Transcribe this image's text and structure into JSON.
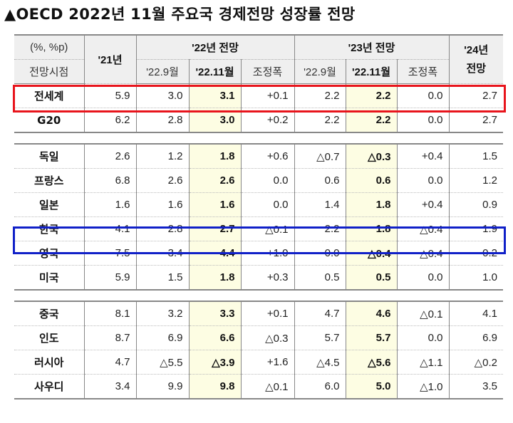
{
  "title": "▲OECD 2022년 11월 주요국 경제전망 성장률 전망",
  "header": {
    "unit": "(%, %p)",
    "forecast_point": "전망시점",
    "y21": "'21년",
    "g22": "'22년 전망",
    "g23": "'23년 전망",
    "y24": "'24년 전망",
    "sub": [
      "'22.9월",
      "'22.11월",
      "조정폭",
      "'22.9월",
      "'22.11월",
      "조정폭"
    ]
  },
  "groups": [
    [
      {
        "name": "전세계",
        "v": [
          "5.9",
          "3.0",
          "3.1",
          "+0.1",
          "2.2",
          "2.2",
          "0.0",
          "2.7"
        ]
      },
      {
        "name": "G20",
        "v": [
          "6.2",
          "2.8",
          "3.0",
          "+0.2",
          "2.2",
          "2.2",
          "0.0",
          "2.7"
        ]
      }
    ],
    [
      {
        "name": "독일",
        "v": [
          "2.6",
          "1.2",
          "1.8",
          "+0.6",
          "△0.7",
          "△0.3",
          "+0.4",
          "1.5"
        ]
      },
      {
        "name": "프랑스",
        "v": [
          "6.8",
          "2.6",
          "2.6",
          "0.0",
          "0.6",
          "0.6",
          "0.0",
          "1.2"
        ]
      },
      {
        "name": "일본",
        "v": [
          "1.6",
          "1.6",
          "1.6",
          "0.0",
          "1.4",
          "1.8",
          "+0.4",
          "0.9"
        ]
      },
      {
        "name": "한국",
        "v": [
          "4.1",
          "2.8",
          "2.7",
          "△0.1",
          "2.2",
          "1.8",
          "△0.4",
          "1.9"
        ]
      },
      {
        "name": "영국",
        "v": [
          "7.5",
          "3.4",
          "4.4",
          "+1.0",
          "0.0",
          "△0.4",
          "△0.4",
          "0.2"
        ]
      },
      {
        "name": "미국",
        "v": [
          "5.9",
          "1.5",
          "1.8",
          "+0.3",
          "0.5",
          "0.5",
          "0.0",
          "1.0"
        ]
      }
    ],
    [
      {
        "name": "중국",
        "v": [
          "8.1",
          "3.2",
          "3.3",
          "+0.1",
          "4.7",
          "4.6",
          "△0.1",
          "4.1"
        ]
      },
      {
        "name": "인도",
        "v": [
          "8.7",
          "6.9",
          "6.6",
          "△0.3",
          "5.7",
          "5.7",
          "0.0",
          "6.9"
        ]
      },
      {
        "name": "러시아",
        "v": [
          "4.7",
          "△5.5",
          "△3.9",
          "+1.6",
          "△4.5",
          "△5.6",
          "△1.1",
          "△0.2"
        ]
      },
      {
        "name": "사우디",
        "v": [
          "3.4",
          "9.9",
          "9.8",
          "△0.1",
          "6.0",
          "5.0",
          "△1.0",
          "3.5"
        ]
      }
    ]
  ],
  "colors": {
    "highlight_world": "#e8141c",
    "highlight_korea": "#1020c8",
    "column_highlight": "#fdfde3"
  }
}
